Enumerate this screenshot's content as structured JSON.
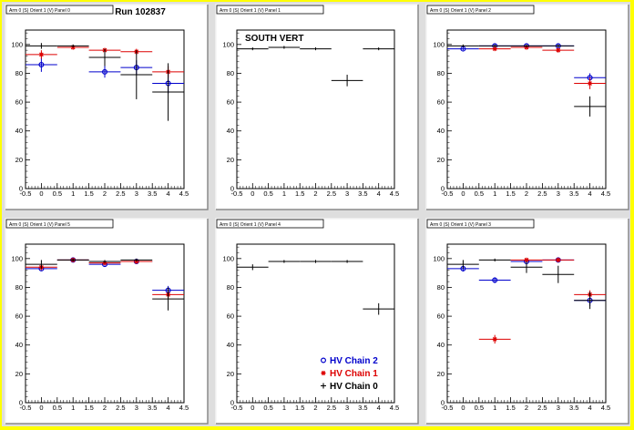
{
  "canvas": {
    "background": "#dedede",
    "border_color": "#ffff00"
  },
  "run_label": "Run 102837",
  "south_label": "SOUTH VERT",
  "colors": {
    "hv2": "#0000cc",
    "hv1": "#dd0000",
    "hv0": "#000000"
  },
  "legend": [
    {
      "label": "HV Chain 2",
      "marker": "open-circle",
      "color": "#0000cc"
    },
    {
      "label": "HV Chain 1",
      "marker": "star",
      "color": "#dd0000"
    },
    {
      "label": "HV Chain 0",
      "marker": "plus",
      "color": "#000000"
    }
  ],
  "chart_data": [
    {
      "type": "scatter",
      "title": "Arm 0 (S) Orient 1 (V) Panel 0",
      "xlim": [
        -0.5,
        4.5
      ],
      "ylim": [
        0,
        110
      ],
      "xticks": [
        "-0.5",
        "0",
        "0.5",
        "1",
        "1.5",
        "2",
        "2.5",
        "3",
        "3.5",
        "4",
        "4.5"
      ],
      "yticks": [
        "0",
        "20",
        "40",
        "60",
        "80",
        "100"
      ],
      "series": [
        {
          "name": "HV Chain 2",
          "points": [
            {
              "x": 0,
              "y": 86,
              "err": 5
            },
            {
              "x": 2,
              "y": 81,
              "err": 4
            },
            {
              "x": 3,
              "y": 84,
              "err": 5
            },
            {
              "x": 4,
              "y": 73,
              "err": 7
            }
          ]
        },
        {
          "name": "HV Chain 1",
          "points": [
            {
              "x": 0,
              "y": 93,
              "err": 3
            },
            {
              "x": 1,
              "y": 98,
              "err": 1
            },
            {
              "x": 2,
              "y": 96,
              "err": 1
            },
            {
              "x": 3,
              "y": 95,
              "err": 2
            },
            {
              "x": 4,
              "y": 81,
              "err": 4
            }
          ]
        },
        {
          "name": "HV Chain 0",
          "points": [
            {
              "x": 0,
              "y": 99,
              "err": 2
            },
            {
              "x": 1,
              "y": 99,
              "err": 1
            },
            {
              "x": 2,
              "y": 91,
              "err": 6
            },
            {
              "x": 3,
              "y": 79,
              "err": 17
            },
            {
              "x": 4,
              "y": 67,
              "err": 20
            }
          ]
        }
      ]
    },
    {
      "type": "scatter",
      "title": "Arm 0 (S) Orient 1 (V) Panel 1",
      "xlim": [
        -0.5,
        4.5
      ],
      "ylim": [
        0,
        110
      ],
      "xticks": [
        "-0.5",
        "0",
        "0.5",
        "1",
        "1.5",
        "2",
        "2.5",
        "3",
        "3.5",
        "4",
        "4.5"
      ],
      "yticks": [
        "0",
        "20",
        "40",
        "60",
        "80",
        "100"
      ],
      "series": [
        {
          "name": "HV Chain 0",
          "points": [
            {
              "x": 0,
              "y": 97,
              "err": 1
            },
            {
              "x": 1,
              "y": 98,
              "err": 1
            },
            {
              "x": 2,
              "y": 97,
              "err": 1
            },
            {
              "x": 3,
              "y": 75,
              "err": 4
            },
            {
              "x": 4,
              "y": 97,
              "err": 1
            }
          ]
        }
      ]
    },
    {
      "type": "scatter",
      "title": "Arm 0 (S) Orient 1 (V) Panel 2",
      "xlim": [
        -0.5,
        4.5
      ],
      "ylim": [
        0,
        110
      ],
      "xticks": [
        "-0.5",
        "0",
        "0.5",
        "1",
        "1.5",
        "2",
        "2.5",
        "3",
        "3.5",
        "4",
        "4.5"
      ],
      "yticks": [
        "0",
        "20",
        "40",
        "60",
        "80",
        "100"
      ],
      "series": [
        {
          "name": "HV Chain 2",
          "points": [
            {
              "x": 0,
              "y": 97,
              "err": 1
            },
            {
              "x": 1,
              "y": 99,
              "err": 1
            },
            {
              "x": 2,
              "y": 99,
              "err": 1
            },
            {
              "x": 3,
              "y": 99,
              "err": 1
            },
            {
              "x": 4,
              "y": 77,
              "err": 3
            }
          ]
        },
        {
          "name": "HV Chain 1",
          "points": [
            {
              "x": 1,
              "y": 97,
              "err": 1
            },
            {
              "x": 2,
              "y": 98,
              "err": 1
            },
            {
              "x": 3,
              "y": 96,
              "err": 1
            },
            {
              "x": 4,
              "y": 73,
              "err": 4
            }
          ]
        },
        {
          "name": "HV Chain 0",
          "points": [
            {
              "x": 0,
              "y": 99,
              "err": 1
            },
            {
              "x": 1,
              "y": 99,
              "err": 1
            },
            {
              "x": 2,
              "y": 99,
              "err": 1
            },
            {
              "x": 3,
              "y": 99,
              "err": 1
            },
            {
              "x": 4,
              "y": 57,
              "err": 7
            }
          ]
        }
      ]
    },
    {
      "type": "scatter",
      "title": "Arm 0 (S) Orient 1 (V) Panel 5",
      "xlim": [
        -0.5,
        4.5
      ],
      "ylim": [
        0,
        110
      ],
      "xticks": [
        "-0.5",
        "0",
        "0.5",
        "1",
        "1.5",
        "2",
        "2.5",
        "3",
        "3.5",
        "4",
        "4.5"
      ],
      "yticks": [
        "0",
        "20",
        "40",
        "60",
        "80",
        "100"
      ],
      "series": [
        {
          "name": "HV Chain 2",
          "points": [
            {
              "x": 0,
              "y": 93,
              "err": 1
            },
            {
              "x": 1,
              "y": 99,
              "err": 1
            },
            {
              "x": 2,
              "y": 96,
              "err": 1
            },
            {
              "x": 3,
              "y": 98,
              "err": 1
            },
            {
              "x": 4,
              "y": 78,
              "err": 3
            }
          ]
        },
        {
          "name": "HV Chain 1",
          "points": [
            {
              "x": 0,
              "y": 94,
              "err": 2
            },
            {
              "x": 1,
              "y": 99,
              "err": 1
            },
            {
              "x": 2,
              "y": 97,
              "err": 1
            },
            {
              "x": 3,
              "y": 98,
              "err": 1
            },
            {
              "x": 4,
              "y": 75,
              "err": 3
            }
          ]
        },
        {
          "name": "HV Chain 0",
          "points": [
            {
              "x": 0,
              "y": 96,
              "err": 3
            },
            {
              "x": 1,
              "y": 99,
              "err": 1
            },
            {
              "x": 2,
              "y": 98,
              "err": 1
            },
            {
              "x": 3,
              "y": 99,
              "err": 1
            },
            {
              "x": 4,
              "y": 72,
              "err": 8
            }
          ]
        }
      ]
    },
    {
      "type": "scatter",
      "title": "Arm 0 (S) Orient 1 (V) Panel 4",
      "xlim": [
        -0.5,
        4.5
      ],
      "ylim": [
        0,
        110
      ],
      "xticks": [
        "-0.5",
        "0",
        "0.5",
        "1",
        "1.5",
        "2",
        "2.5",
        "3",
        "3.5",
        "4",
        "4.5"
      ],
      "yticks": [
        "0",
        "20",
        "40",
        "60",
        "80",
        "100"
      ],
      "series": [
        {
          "name": "HV Chain 0",
          "points": [
            {
              "x": 0,
              "y": 94,
              "err": 2
            },
            {
              "x": 1,
              "y": 98,
              "err": 1
            },
            {
              "x": 2,
              "y": 98,
              "err": 1
            },
            {
              "x": 3,
              "y": 98,
              "err": 1
            },
            {
              "x": 4,
              "y": 65,
              "err": 4
            }
          ]
        }
      ]
    },
    {
      "type": "scatter",
      "title": "Arm 0 (S) Orient 1 (V) Panel 3",
      "xlim": [
        -0.5,
        4.5
      ],
      "ylim": [
        0,
        110
      ],
      "xticks": [
        "-0.5",
        "0",
        "0.5",
        "1",
        "1.5",
        "2",
        "2.5",
        "3",
        "3.5",
        "4",
        "4.5"
      ],
      "yticks": [
        "0",
        "20",
        "40",
        "60",
        "80",
        "100"
      ],
      "series": [
        {
          "name": "HV Chain 2",
          "points": [
            {
              "x": 0,
              "y": 93,
              "err": 2
            },
            {
              "x": 1,
              "y": 85,
              "err": 2
            },
            {
              "x": 2,
              "y": 98,
              "err": 2
            },
            {
              "x": 3,
              "y": 99,
              "err": 1
            },
            {
              "x": 4,
              "y": 71,
              "err": 4
            }
          ]
        },
        {
          "name": "HV Chain 1",
          "points": [
            {
              "x": 1,
              "y": 44,
              "err": 3
            },
            {
              "x": 2,
              "y": 99,
              "err": 1
            },
            {
              "x": 3,
              "y": 99,
              "err": 1
            },
            {
              "x": 4,
              "y": 75,
              "err": 3
            }
          ]
        },
        {
          "name": "HV Chain 0",
          "points": [
            {
              "x": 0,
              "y": 96,
              "err": 3
            },
            {
              "x": 1,
              "y": 99,
              "err": 1
            },
            {
              "x": 2,
              "y": 94,
              "err": 4
            },
            {
              "x": 3,
              "y": 89,
              "err": 6
            },
            {
              "x": 4,
              "y": 71,
              "err": 6
            }
          ]
        }
      ]
    }
  ]
}
